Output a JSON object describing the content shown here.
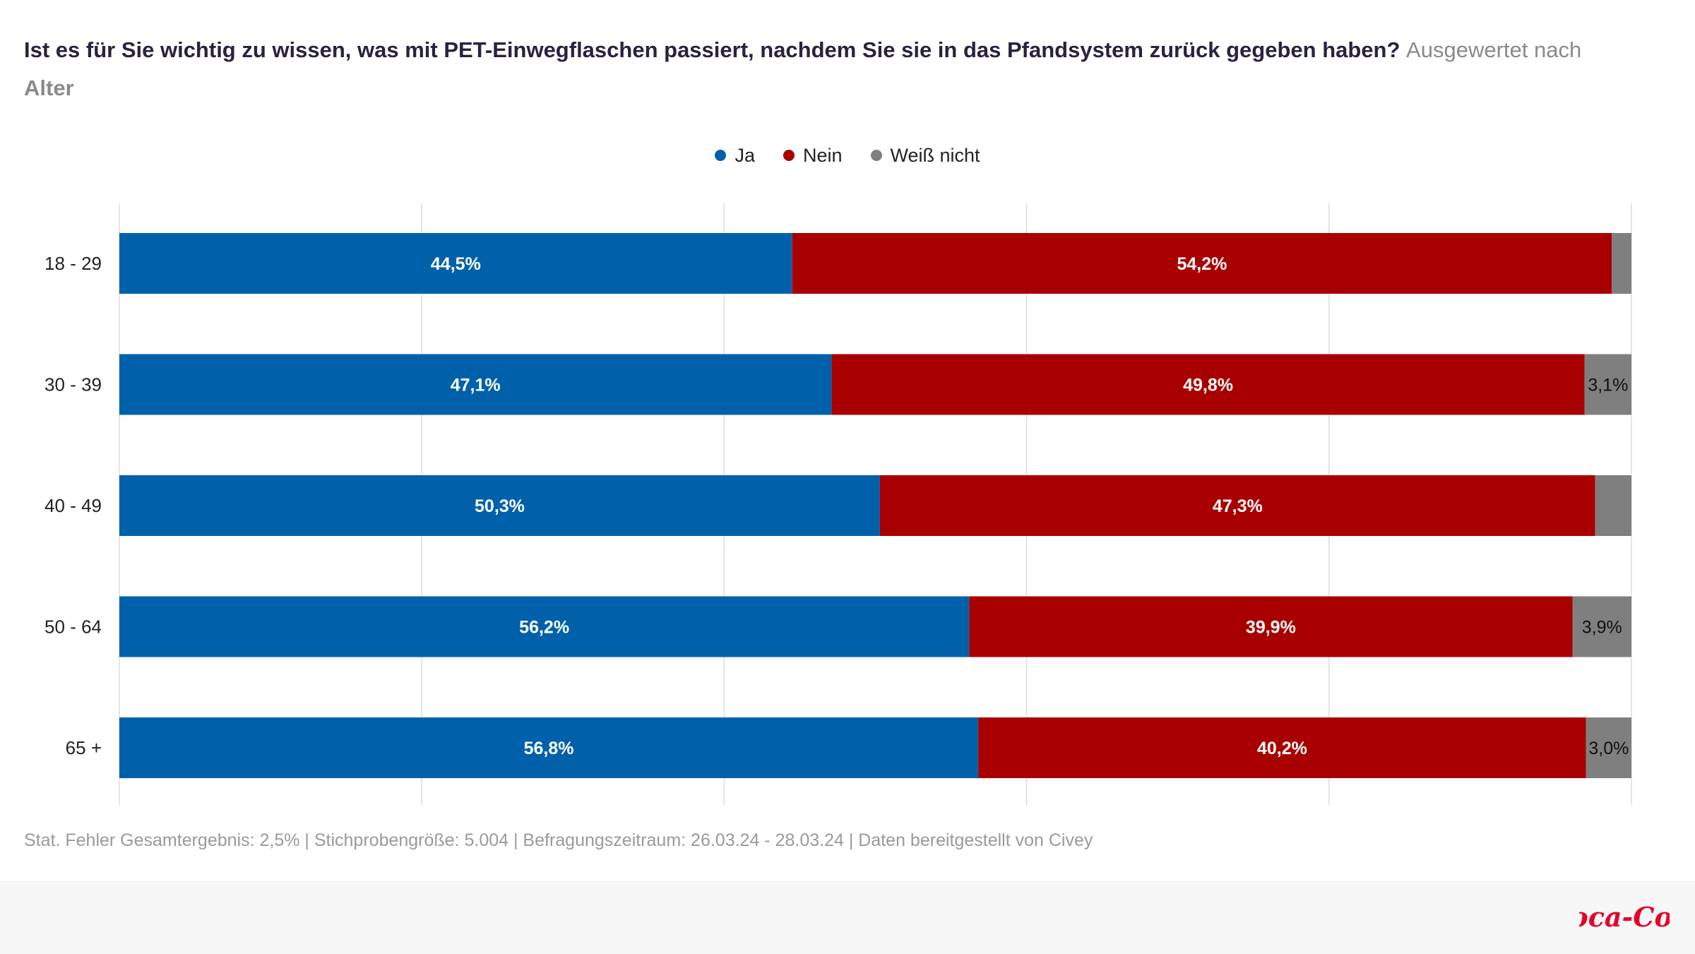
{
  "title": {
    "main": "Ist es für Sie wichtig zu wissen, was mit PET-Einwegflaschen passiert, nachdem Sie sie in das Pfandsystem zurück gegeben haben?",
    "sub": "Ausgewertet nach",
    "sub2": "Alter"
  },
  "colors": {
    "ja": "#0061aa",
    "nein": "#a80000",
    "weiss_nicht": "#7f7f7f",
    "grid": "#dddddd"
  },
  "chart_data": {
    "type": "bar",
    "orientation": "horizontal",
    "stacked": true,
    "categories": [
      "18 - 29",
      "30 - 39",
      "40 - 49",
      "50 - 64",
      "65 +"
    ],
    "series": [
      {
        "name": "Ja",
        "color": "#0061aa",
        "values": [
          44.5,
          47.1,
          50.3,
          56.2,
          56.8
        ],
        "labels": [
          "44,5%",
          "47,1%",
          "50,3%",
          "56,2%",
          "56,8%"
        ]
      },
      {
        "name": "Nein",
        "color": "#a80000",
        "values": [
          54.2,
          49.8,
          47.3,
          39.9,
          40.2
        ],
        "labels": [
          "54,2%",
          "49,8%",
          "47,3%",
          "39,9%",
          "40,2%"
        ]
      },
      {
        "name": "Weiß nicht",
        "color": "#7f7f7f",
        "values": [
          1.3,
          3.1,
          2.4,
          3.9,
          3.0
        ],
        "labels": [
          "",
          "3,1%",
          "",
          "3,9%",
          "3,0%"
        ]
      }
    ],
    "xlim": [
      0,
      100
    ],
    "grid": true,
    "legend": "top-center"
  },
  "footer": {
    "note": "Stat. Fehler Gesamtergebnis: 2,5% | Stichprobengröße: 5.004 | Befragungszeitraum: 26.03.24 - 28.03.24 | Daten bereitgestellt von Civey"
  },
  "logo": {
    "text": "Coca-Cola"
  }
}
